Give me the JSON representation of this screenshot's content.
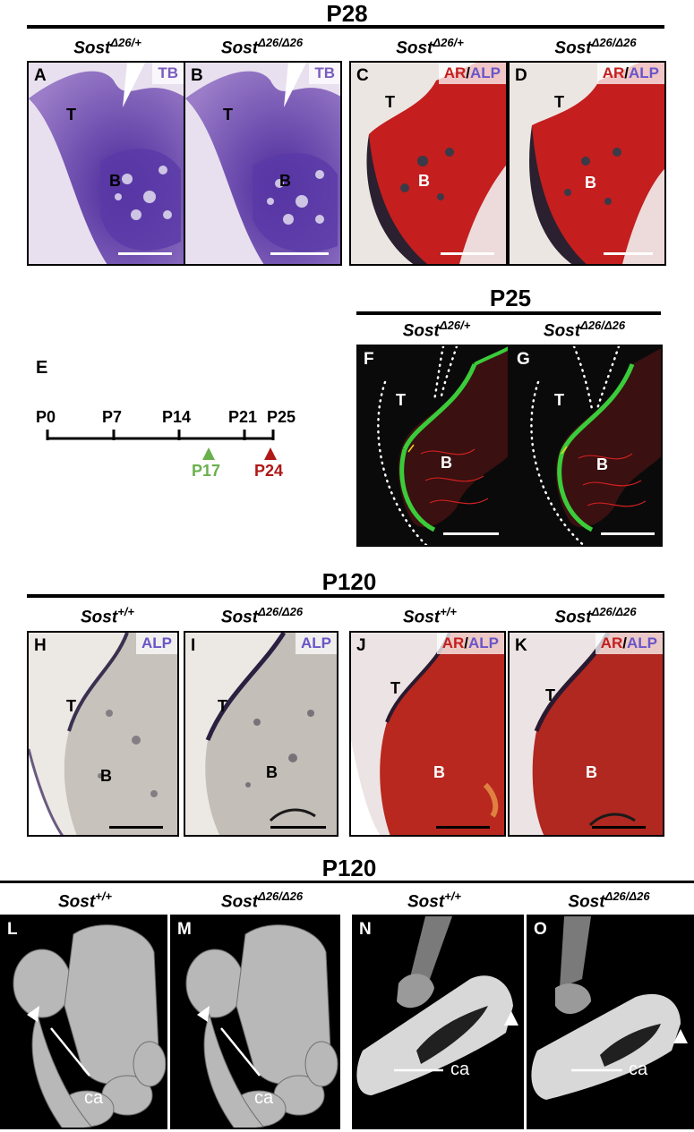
{
  "section_titles": {
    "p28": "P28",
    "p25": "P25",
    "p120_a": "P120",
    "p120_b": "P120"
  },
  "genotypes": {
    "het": "Sost",
    "het_sup": "Δ26/+",
    "hom": "Sost",
    "hom_sup": "Δ26/Δ26",
    "wt": "Sost",
    "wt_sup": "+/+"
  },
  "panels": {
    "A": {
      "letter": "A",
      "stain": "TB",
      "t": "T",
      "b": "B"
    },
    "B": {
      "letter": "B",
      "stain": "TB",
      "t": "T",
      "b": "B"
    },
    "C": {
      "letter": "C",
      "stain_ar": "AR",
      "sep": "/",
      "stain_alp": "ALP",
      "t": "T",
      "b": "B"
    },
    "D": {
      "letter": "D",
      "stain_ar": "AR",
      "sep": "/",
      "stain_alp": "ALP",
      "t": "T",
      "b": "B"
    },
    "F": {
      "letter": "F",
      "t": "T",
      "b": "B"
    },
    "G": {
      "letter": "G",
      "t": "T",
      "b": "B"
    },
    "H": {
      "letter": "H",
      "stain": "ALP",
      "t": "T",
      "b": "B"
    },
    "I": {
      "letter": "I",
      "stain": "ALP",
      "t": "T",
      "b": "B"
    },
    "J": {
      "letter": "J",
      "stain_ar": "AR",
      "sep": "/",
      "stain_alp": "ALP",
      "t": "T",
      "b": "B"
    },
    "K": {
      "letter": "K",
      "stain_ar": "AR",
      "sep": "/",
      "stain_alp": "ALP",
      "t": "T",
      "b": "B"
    },
    "L": {
      "letter": "L",
      "ca": "ca"
    },
    "M": {
      "letter": "M",
      "ca": "ca"
    },
    "N": {
      "letter": "N",
      "ca": "ca"
    },
    "O": {
      "letter": "O",
      "ca": "ca"
    }
  },
  "timeline": {
    "letter": "E",
    "ticks": [
      "P0",
      "P7",
      "P14",
      "P21",
      "P25"
    ],
    "green_label": "P17",
    "red_label": "P24",
    "green_color": "#6ab04c",
    "red_color": "#b01818"
  },
  "colors": {
    "tb_purple": "#7a5cc0",
    "ar_red": "#c41e1e",
    "alp_purple": "#6a55c8"
  }
}
